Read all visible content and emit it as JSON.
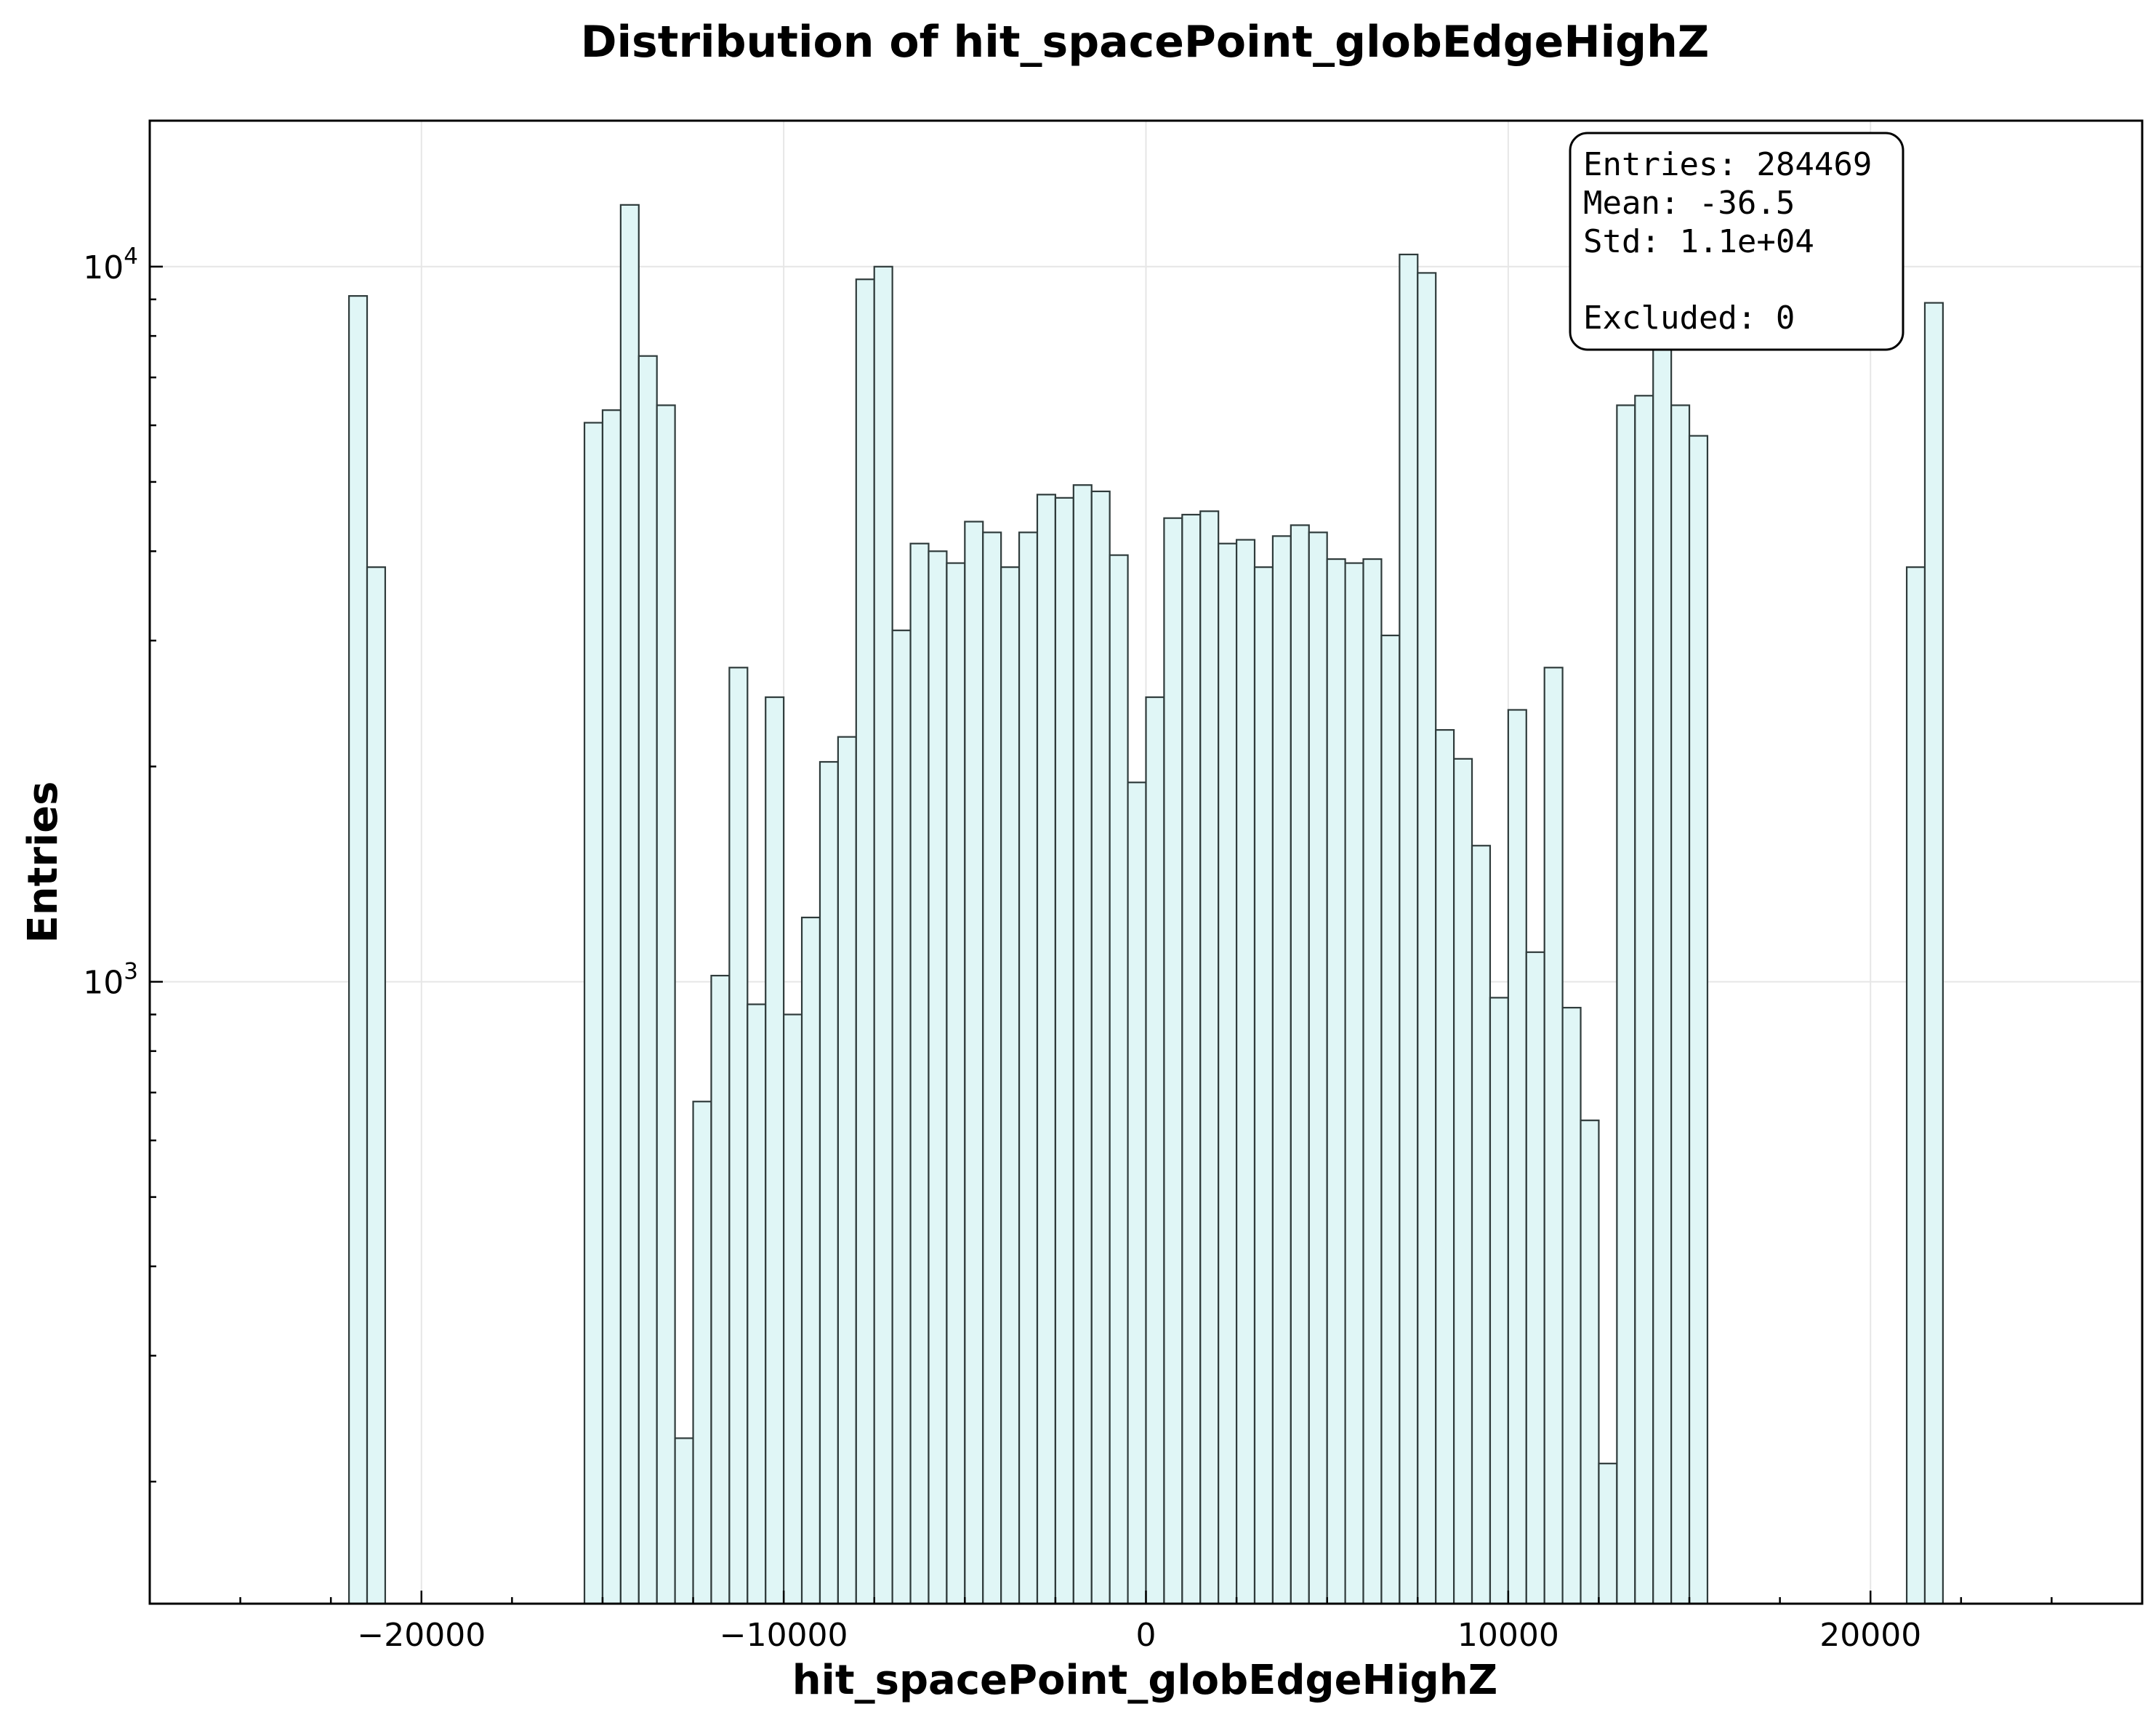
{
  "chart_data": {
    "type": "bar",
    "title": "Distribution of hit_spacePoint_globEdgeHighZ",
    "xlabel": "hit_spacePoint_globEdgeHighZ",
    "ylabel": "Entries",
    "yscale": "log",
    "xlim": [
      -27500,
      27500
    ],
    "ylim": [
      135,
      16000
    ],
    "grid": true,
    "x_ticks": [
      -20000,
      -10000,
      0,
      10000,
      20000
    ],
    "x_tick_labels": [
      "−20000",
      "−10000",
      "0",
      "10000",
      "20000"
    ],
    "y_ticks": [
      1000,
      10000
    ],
    "y_tick_base": "10",
    "y_tick_exponents": [
      "3",
      "4"
    ],
    "bins": [
      {
        "x0": -22000,
        "x1": -21500,
        "count": 9100
      },
      {
        "x0": -21500,
        "x1": -21000,
        "count": 3800
      },
      {
        "x0": -15500,
        "x1": -15000,
        "count": 6050
      },
      {
        "x0": -15000,
        "x1": -14500,
        "count": 6300
      },
      {
        "x0": -14500,
        "x1": -14000,
        "count": 12200
      },
      {
        "x0": -14000,
        "x1": -13500,
        "count": 7500
      },
      {
        "x0": -13500,
        "x1": -13000,
        "count": 6400
      },
      {
        "x0": -13000,
        "x1": -12500,
        "count": 230
      },
      {
        "x0": -12500,
        "x1": -12000,
        "count": 680
      },
      {
        "x0": -12000,
        "x1": -11500,
        "count": 1020
      },
      {
        "x0": -11500,
        "x1": -11000,
        "count": 2750
      },
      {
        "x0": -11000,
        "x1": -10500,
        "count": 930
      },
      {
        "x0": -10500,
        "x1": -10000,
        "count": 2500
      },
      {
        "x0": -10000,
        "x1": -9500,
        "count": 900
      },
      {
        "x0": -9500,
        "x1": -9000,
        "count": 1230
      },
      {
        "x0": -9000,
        "x1": -8500,
        "count": 2030
      },
      {
        "x0": -8500,
        "x1": -8000,
        "count": 2200
      },
      {
        "x0": -8000,
        "x1": -7500,
        "count": 9600
      },
      {
        "x0": -7500,
        "x1": -7000,
        "count": 10000
      },
      {
        "x0": -7000,
        "x1": -6500,
        "count": 3100
      },
      {
        "x0": -6500,
        "x1": -6000,
        "count": 4100
      },
      {
        "x0": -6000,
        "x1": -5500,
        "count": 4000
      },
      {
        "x0": -5500,
        "x1": -5000,
        "count": 3850
      },
      {
        "x0": -5000,
        "x1": -4500,
        "count": 4400
      },
      {
        "x0": -4500,
        "x1": -4000,
        "count": 4250
      },
      {
        "x0": -4000,
        "x1": -3500,
        "count": 3800
      },
      {
        "x0": -3500,
        "x1": -3000,
        "count": 4250
      },
      {
        "x0": -3000,
        "x1": -2500,
        "count": 4800
      },
      {
        "x0": -2500,
        "x1": -2000,
        "count": 4750
      },
      {
        "x0": -2000,
        "x1": -1500,
        "count": 4950
      },
      {
        "x0": -1500,
        "x1": -1000,
        "count": 4850
      },
      {
        "x0": -1000,
        "x1": -500,
        "count": 3950
      },
      {
        "x0": -500,
        "x1": 0,
        "count": 1900
      },
      {
        "x0": 0,
        "x1": 500,
        "count": 2500
      },
      {
        "x0": 500,
        "x1": 1000,
        "count": 4450
      },
      {
        "x0": 1000,
        "x1": 1500,
        "count": 4500
      },
      {
        "x0": 1500,
        "x1": 2000,
        "count": 4550
      },
      {
        "x0": 2000,
        "x1": 2500,
        "count": 4100
      },
      {
        "x0": 2500,
        "x1": 3000,
        "count": 4150
      },
      {
        "x0": 3000,
        "x1": 3500,
        "count": 3800
      },
      {
        "x0": 3500,
        "x1": 4000,
        "count": 4200
      },
      {
        "x0": 4000,
        "x1": 4500,
        "count": 4350
      },
      {
        "x0": 4500,
        "x1": 5000,
        "count": 4250
      },
      {
        "x0": 5000,
        "x1": 5500,
        "count": 3900
      },
      {
        "x0": 5500,
        "x1": 6000,
        "count": 3850
      },
      {
        "x0": 6000,
        "x1": 6500,
        "count": 3900
      },
      {
        "x0": 6500,
        "x1": 7000,
        "count": 3050
      },
      {
        "x0": 7000,
        "x1": 7500,
        "count": 10400
      },
      {
        "x0": 7500,
        "x1": 8000,
        "count": 9800
      },
      {
        "x0": 8000,
        "x1": 8500,
        "count": 2250
      },
      {
        "x0": 8500,
        "x1": 9000,
        "count": 2050
      },
      {
        "x0": 9000,
        "x1": 9500,
        "count": 1550
      },
      {
        "x0": 9500,
        "x1": 10000,
        "count": 950
      },
      {
        "x0": 10000,
        "x1": 10500,
        "count": 2400
      },
      {
        "x0": 10500,
        "x1": 11000,
        "count": 1100
      },
      {
        "x0": 11000,
        "x1": 11500,
        "count": 2750
      },
      {
        "x0": 11500,
        "x1": 12000,
        "count": 920
      },
      {
        "x0": 12000,
        "x1": 12500,
        "count": 640
      },
      {
        "x0": 12500,
        "x1": 13000,
        "count": 212
      },
      {
        "x0": 13000,
        "x1": 13500,
        "count": 6400
      },
      {
        "x0": 13500,
        "x1": 14000,
        "count": 6600
      },
      {
        "x0": 14000,
        "x1": 14500,
        "count": 8500
      },
      {
        "x0": 14500,
        "x1": 15000,
        "count": 6400
      },
      {
        "x0": 15000,
        "x1": 15500,
        "count": 5800
      },
      {
        "x0": 21000,
        "x1": 21500,
        "count": 3800
      },
      {
        "x0": 21500,
        "x1": 22000,
        "count": 8900
      }
    ],
    "stats_box": {
      "entries": "Entries: 284469",
      "mean": "Mean: -36.5",
      "std": "Std: 1.1e+04",
      "excluded": "Excluded: 0"
    }
  }
}
